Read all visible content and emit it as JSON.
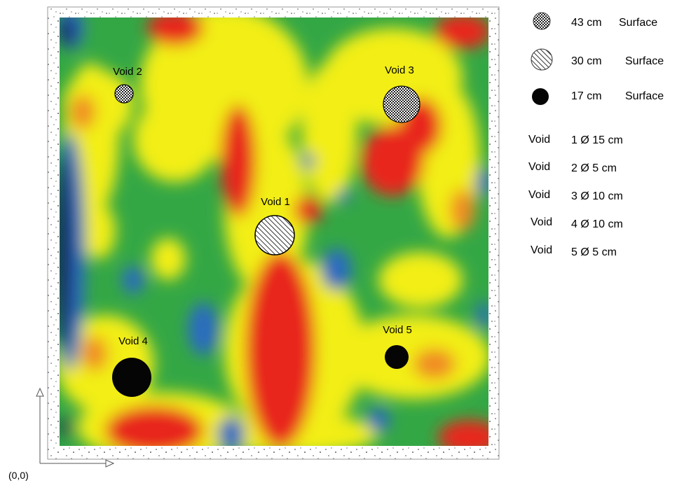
{
  "origin_label": "(0,0)",
  "voids": [
    {
      "label": "Void 1",
      "marker": "hatched"
    },
    {
      "label": "Void 2",
      "marker": "checkered"
    },
    {
      "label": "Void 3",
      "marker": "checkered"
    },
    {
      "label": "Void 4",
      "marker": "black"
    },
    {
      "label": "Void 5",
      "marker": "black"
    }
  ],
  "legend": {
    "depths": [
      {
        "depth": "43 cm",
        "ref": "Surface",
        "marker": "checkered"
      },
      {
        "depth": "30 cm",
        "ref": "Surface",
        "marker": "hatched"
      },
      {
        "depth": "17 cm",
        "ref": "Surface",
        "marker": "black"
      }
    ],
    "sizes": [
      {
        "word": "Void",
        "size": "1 Ø 15 cm"
      },
      {
        "word": "Void",
        "size": "2 Ø 5 cm"
      },
      {
        "word": "Void",
        "size": "3 Ø 10 cm"
      },
      {
        "word": "Void",
        "size": "4 Ø 10 cm"
      },
      {
        "word": "Void",
        "size": "5 Ø 5 cm"
      }
    ]
  },
  "colors": {
    "green": "#34a745",
    "yellow": "#f2ee14",
    "red": "#e8281e",
    "blue": "#2b6cc0",
    "dark_blue": "#0b1a4a",
    "orange": "#f08a20"
  }
}
